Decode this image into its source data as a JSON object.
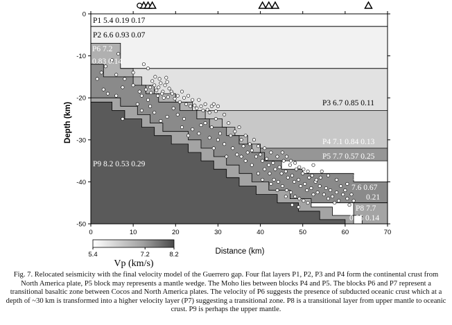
{
  "chart_data": {
    "type": "scatter",
    "xlabel": "Distance (km)",
    "ylabel": "Depth (km)",
    "xlim": [
      0,
      70
    ],
    "ylim": [
      0,
      -50
    ],
    "x_ticks": [
      "0",
      "10",
      "20",
      "30",
      "40",
      "50",
      "60",
      "70"
    ],
    "y_ticks": [
      "0",
      "-10",
      "-20",
      "-30",
      "-40",
      "-50"
    ],
    "stations": [
      {
        "x": 12.5,
        "type": "triangle"
      },
      {
        "x": 13.5,
        "type": "triangle"
      },
      {
        "x": 14.5,
        "type": "triangle"
      },
      {
        "x": 40.5,
        "type": "triangle"
      },
      {
        "x": 42.0,
        "type": "triangle"
      },
      {
        "x": 43.5,
        "type": "triangle"
      },
      {
        "x": 65.5,
        "type": "triangle"
      }
    ],
    "layers": [
      {
        "name": "P1",
        "label": "P1  5.4  0.19  0.17",
        "vp": 5.4,
        "color": "#ffffff",
        "poly": [
          [
            0,
            0
          ],
          [
            70,
            0
          ],
          [
            70,
            -3
          ],
          [
            0,
            -3
          ]
        ]
      },
      {
        "name": "P2",
        "label": "P2  6.6  0.93  0.07",
        "vp": 6.6,
        "color": "#f2f2f2",
        "poly": [
          [
            0,
            -3
          ],
          [
            70,
            -3
          ],
          [
            70,
            -13
          ],
          [
            0,
            -13
          ]
        ]
      },
      {
        "name": "P3",
        "label": "P3  6.7  0.85  0.11",
        "vp": 6.7,
        "color": "#e2e2e2",
        "poly": [
          [
            0,
            -13
          ],
          [
            70,
            -13
          ],
          [
            70,
            -23
          ],
          [
            0,
            -23
          ]
        ]
      },
      {
        "name": "P4",
        "label": "P4  7.1  0.84  0.13",
        "vp": 7.1,
        "color": "#c8c8c8",
        "poly": [
          [
            0,
            -23
          ],
          [
            70,
            -23
          ],
          [
            70,
            -32
          ],
          [
            0,
            -32
          ]
        ]
      },
      {
        "name": "P5",
        "label": "P5  7.7  0.57  0.25",
        "vp": 7.7,
        "color": "#969696",
        "poly": [
          [
            40,
            -32
          ],
          [
            70,
            -32
          ],
          [
            70,
            -35
          ],
          [
            40,
            -35
          ]
        ]
      },
      {
        "name": "P6",
        "label_lines": [
          "P6  7.2",
          "0.83  0.14"
        ],
        "vp": 7.2,
        "color": "#b0b0b0",
        "poly": [
          [
            0,
            -7
          ],
          [
            7,
            -7
          ],
          [
            7,
            -13
          ],
          [
            10,
            -13
          ],
          [
            10,
            -15
          ],
          [
            12,
            -15
          ],
          [
            12,
            -17
          ],
          [
            15,
            -17
          ],
          [
            15,
            -19
          ],
          [
            20,
            -19
          ],
          [
            20,
            -21
          ],
          [
            24,
            -21
          ],
          [
            24,
            -23
          ],
          [
            27,
            -23
          ],
          [
            27,
            -25
          ],
          [
            31,
            -25
          ],
          [
            31,
            -27
          ],
          [
            34,
            -27
          ],
          [
            34,
            -29
          ],
          [
            37,
            -29
          ],
          [
            37,
            -31
          ],
          [
            40,
            -31
          ],
          [
            40,
            -35
          ],
          [
            45,
            -35
          ],
          [
            45,
            -37
          ],
          [
            0,
            -37
          ]
        ]
      },
      {
        "name": "P7",
        "label_lines": [
          "P7",
          "7.6   0.67",
          "0.21"
        ],
        "vp": 7.6,
        "color": "#8a8a8a",
        "poly": [
          [
            0,
            -12
          ],
          [
            3,
            -12
          ],
          [
            3,
            -15
          ],
          [
            10,
            -15
          ],
          [
            10,
            -17
          ],
          [
            13,
            -17
          ],
          [
            13,
            -19
          ],
          [
            16,
            -19
          ],
          [
            16,
            -21
          ],
          [
            21,
            -21
          ],
          [
            21,
            -23
          ],
          [
            25,
            -23
          ],
          [
            25,
            -25
          ],
          [
            28,
            -25
          ],
          [
            28,
            -27
          ],
          [
            32,
            -27
          ],
          [
            32,
            -29
          ],
          [
            35,
            -29
          ],
          [
            35,
            -31
          ],
          [
            38,
            -31
          ],
          [
            38,
            -33
          ],
          [
            41,
            -33
          ],
          [
            41,
            -35
          ],
          [
            45,
            -35
          ],
          [
            45,
            -37
          ],
          [
            50,
            -37
          ],
          [
            50,
            -38
          ],
          [
            62,
            -38
          ],
          [
            62,
            -40
          ],
          [
            70,
            -40
          ],
          [
            70,
            -45
          ],
          [
            0,
            -45
          ]
        ]
      },
      {
        "name": "P8",
        "label_lines": [
          "P8   7.7",
          "0.85  0.14"
        ],
        "vp": 7.7,
        "color": "#a4a4a4",
        "poly": [
          [
            0,
            -20
          ],
          [
            7,
            -20
          ],
          [
            7,
            -22
          ],
          [
            11,
            -22
          ],
          [
            11,
            -24
          ],
          [
            14,
            -24
          ],
          [
            14,
            -26
          ],
          [
            17,
            -26
          ],
          [
            17,
            -28
          ],
          [
            23,
            -28
          ],
          [
            23,
            -30
          ],
          [
            26,
            -30
          ],
          [
            26,
            -32
          ],
          [
            29,
            -32
          ],
          [
            29,
            -34
          ],
          [
            32,
            -34
          ],
          [
            32,
            -36
          ],
          [
            35,
            -36
          ],
          [
            35,
            -38
          ],
          [
            38,
            -38
          ],
          [
            38,
            -40
          ],
          [
            42,
            -40
          ],
          [
            42,
            -42
          ],
          [
            47,
            -42
          ],
          [
            47,
            -44
          ],
          [
            52,
            -44
          ],
          [
            52,
            -46
          ],
          [
            57,
            -46
          ],
          [
            57,
            -48
          ],
          [
            64,
            -48
          ],
          [
            64,
            -50
          ],
          [
            70,
            -50
          ],
          [
            70,
            -45
          ],
          [
            62,
            -45
          ],
          [
            62,
            -50
          ],
          [
            0,
            -50
          ]
        ]
      },
      {
        "name": "P9",
        "label": "P9  8.2  0.53  0.29",
        "vp": 8.2,
        "color": "#5a5a5a",
        "poly": [
          [
            0,
            -21
          ],
          [
            5,
            -21
          ],
          [
            5,
            -23
          ],
          [
            8,
            -23
          ],
          [
            8,
            -25
          ],
          [
            12,
            -25
          ],
          [
            12,
            -27
          ],
          [
            15,
            -27
          ],
          [
            15,
            -29
          ],
          [
            19,
            -29
          ],
          [
            19,
            -31
          ],
          [
            23,
            -31
          ],
          [
            23,
            -33
          ],
          [
            26,
            -33
          ],
          [
            26,
            -35
          ],
          [
            29,
            -35
          ],
          [
            29,
            -37
          ],
          [
            32,
            -37
          ],
          [
            32,
            -39
          ],
          [
            35,
            -39
          ],
          [
            35,
            -41
          ],
          [
            39,
            -41
          ],
          [
            39,
            -43
          ],
          [
            44,
            -43
          ],
          [
            44,
            -45
          ],
          [
            49,
            -45
          ],
          [
            49,
            -47
          ],
          [
            54,
            -47
          ],
          [
            54,
            -49
          ],
          [
            60,
            -49
          ],
          [
            60,
            -50
          ],
          [
            0,
            -50
          ]
        ]
      }
    ],
    "colorbar": {
      "label": "Vp (km/s)",
      "ticks": [
        "5.4",
        "7.2",
        "8.2"
      ],
      "min": 5.4,
      "max": 8.2
    }
  },
  "caption": {
    "text": "Fig. 7. Relocated seismicity with the final velocity model of the Guerrero gap. Four flat layers  P1, P2, P3 and P4 form the continental crust from North America plate, P5 block may represents a mantle wedge. The Moho lies between blocks P4 and P5. The blocks P6 and P7 represent a transitional basaltic zone between Cocos and North America plates. The velocity of P6 suggests the presence of subducted oceanic crust which at a depth of ~30 km is transformed into a higher velocity layer (P7) suggesting a transitional zone. P8 is a transitional layer from upper mantle to oceanic crust. P9 is perhaps the upper mantle."
  },
  "events": [
    [
      6.5,
      -9.5
    ],
    [
      5.0,
      -11.0
    ],
    [
      2.5,
      -14.0
    ],
    [
      3.5,
      -12.5
    ],
    [
      1.5,
      -15.5
    ],
    [
      6.0,
      -14.5
    ],
    [
      8.0,
      -15.5
    ],
    [
      10.0,
      -14.0
    ],
    [
      12.5,
      -12.0
    ],
    [
      13.5,
      -13.0
    ],
    [
      4.0,
      -19.0
    ],
    [
      3.0,
      -18.0
    ],
    [
      6.0,
      -19.5
    ],
    [
      7.5,
      -17.5
    ],
    [
      10.0,
      -17.0
    ],
    [
      11.5,
      -18.5
    ],
    [
      12.0,
      -19.5
    ],
    [
      13.0,
      -18.0
    ],
    [
      14.0,
      -17.5
    ],
    [
      14.5,
      -16.0
    ],
    [
      15.0,
      -17.0
    ],
    [
      15.5,
      -18.2
    ],
    [
      16.0,
      -17.5
    ],
    [
      16.5,
      -16.5
    ],
    [
      17.0,
      -18.5
    ],
    [
      17.5,
      -17.0
    ],
    [
      18.0,
      -16.2
    ],
    [
      18.5,
      -17.8
    ],
    [
      19.0,
      -18.5
    ],
    [
      15.8,
      -19.5
    ],
    [
      16.8,
      -19.0
    ],
    [
      17.2,
      -20.0
    ],
    [
      18.2,
      -19.8
    ],
    [
      19.2,
      -19.0
    ],
    [
      19.8,
      -20.2
    ],
    [
      16.2,
      -15.5
    ],
    [
      17.8,
      -15.2
    ],
    [
      15.2,
      -15.0
    ],
    [
      14.2,
      -18.8
    ],
    [
      13.5,
      -20.5
    ],
    [
      20.5,
      -19.5
    ],
    [
      21.0,
      -21.0
    ],
    [
      21.5,
      -18.5
    ],
    [
      22.0,
      -20.0
    ],
    [
      22.5,
      -21.5
    ],
    [
      23.0,
      -19.5
    ],
    [
      23.5,
      -22.0
    ],
    [
      24.0,
      -20.5
    ],
    [
      24.5,
      -21.8
    ],
    [
      25.0,
      -22.5
    ],
    [
      25.5,
      -20.5
    ],
    [
      26.0,
      -22.0
    ],
    [
      26.5,
      -23.0
    ],
    [
      27.0,
      -21.5
    ],
    [
      27.5,
      -22.8
    ],
    [
      28.0,
      -23.5
    ],
    [
      28.5,
      -22.0
    ],
    [
      29.0,
      -21.5
    ],
    [
      29.5,
      -23.2
    ],
    [
      30.0,
      -22.0
    ],
    [
      14.0,
      -22.0
    ],
    [
      15.0,
      -23.5
    ],
    [
      16.5,
      -25.5
    ],
    [
      18.0,
      -24.5
    ],
    [
      19.5,
      -22.5
    ],
    [
      20.5,
      -24.0
    ],
    [
      22.0,
      -25.0
    ],
    [
      12.0,
      -23.0
    ],
    [
      7.5,
      -25.0
    ],
    [
      11.0,
      -21.5
    ],
    [
      21.5,
      -27.0
    ],
    [
      24.0,
      -27.5
    ],
    [
      26.0,
      -26.5
    ],
    [
      28.5,
      -27.0
    ],
    [
      30.5,
      -28.5
    ],
    [
      29.5,
      -25.0
    ],
    [
      27.0,
      -26.0
    ],
    [
      31.5,
      -24.0
    ],
    [
      32.5,
      -26.0
    ],
    [
      33.0,
      -29.0
    ],
    [
      34.0,
      -28.0
    ],
    [
      35.0,
      -27.0
    ],
    [
      35.5,
      -30.0
    ],
    [
      36.0,
      -31.5
    ],
    [
      36.5,
      -29.0
    ],
    [
      37.0,
      -33.0
    ],
    [
      37.5,
      -31.0
    ],
    [
      38.0,
      -32.5
    ],
    [
      38.5,
      -30.0
    ],
    [
      39.0,
      -34.0
    ],
    [
      39.5,
      -31.5
    ],
    [
      40.0,
      -33.5
    ],
    [
      40.5,
      -35.0
    ],
    [
      41.0,
      -32.0
    ],
    [
      41.5,
      -34.5
    ],
    [
      42.0,
      -36.0
    ],
    [
      42.5,
      -33.0
    ],
    [
      43.0,
      -35.5
    ],
    [
      43.5,
      -37.0
    ],
    [
      44.0,
      -34.0
    ],
    [
      44.5,
      -36.5
    ],
    [
      45.0,
      -38.0
    ],
    [
      45.5,
      -35.0
    ],
    [
      46.0,
      -37.5
    ],
    [
      46.5,
      -39.0
    ],
    [
      47.0,
      -36.0
    ],
    [
      47.5,
      -38.5
    ],
    [
      48.0,
      -40.0
    ],
    [
      48.5,
      -37.0
    ],
    [
      49.0,
      -39.5
    ],
    [
      49.5,
      -41.0
    ],
    [
      50.0,
      -38.0
    ],
    [
      50.5,
      -40.5
    ],
    [
      51.0,
      -42.0
    ],
    [
      51.5,
      -39.0
    ],
    [
      52.0,
      -41.5
    ],
    [
      52.5,
      -43.0
    ],
    [
      53.0,
      -40.0
    ],
    [
      53.5,
      -42.5
    ],
    [
      54.0,
      -41.0
    ],
    [
      45.2,
      -33.0
    ],
    [
      46.2,
      -34.0
    ],
    [
      47.2,
      -35.0
    ],
    [
      48.2,
      -35.5
    ],
    [
      49.2,
      -36.5
    ],
    [
      50.2,
      -37.0
    ],
    [
      51.2,
      -37.5
    ],
    [
      52.2,
      -38.5
    ],
    [
      53.2,
      -39.5
    ],
    [
      54.2,
      -39.0
    ],
    [
      42.2,
      -38.0
    ],
    [
      43.2,
      -39.5
    ],
    [
      44.2,
      -40.0
    ],
    [
      45.2,
      -41.0
    ],
    [
      46.2,
      -42.0
    ],
    [
      47.2,
      -42.5
    ],
    [
      48.2,
      -43.5
    ],
    [
      49.2,
      -44.0
    ],
    [
      50.2,
      -44.5
    ],
    [
      51.2,
      -45.0
    ],
    [
      55.0,
      -43.0
    ],
    [
      55.5,
      -41.5
    ],
    [
      56.0,
      -44.0
    ],
    [
      56.5,
      -42.0
    ],
    [
      57.0,
      -43.5
    ],
    [
      57.5,
      -45.0
    ],
    [
      58.0,
      -42.5
    ],
    [
      58.5,
      -44.5
    ],
    [
      59.0,
      -41.0
    ],
    [
      59.5,
      -43.0
    ],
    [
      60.0,
      -42.0
    ],
    [
      60.5,
      -44.0
    ],
    [
      61.0,
      -45.5
    ],
    [
      61.5,
      -43.0
    ],
    [
      62.0,
      -44.5
    ],
    [
      60.5,
      -40.5
    ],
    [
      58.0,
      -39.5
    ],
    [
      56.0,
      -38.5
    ],
    [
      54.5,
      -37.5
    ],
    [
      52.5,
      -36.0
    ],
    [
      38.0,
      -36.0
    ],
    [
      39.5,
      -38.0
    ],
    [
      40.5,
      -39.5
    ],
    [
      41.0,
      -37.0
    ],
    [
      42.5,
      -40.5
    ],
    [
      44.0,
      -42.0
    ],
    [
      46.0,
      -43.5
    ],
    [
      47.5,
      -45.5
    ],
    [
      49.0,
      -46.0
    ],
    [
      35.5,
      -34.0
    ],
    [
      33.5,
      -32.0
    ],
    [
      31.5,
      -31.0
    ],
    [
      34.5,
      -33.5
    ],
    [
      36.5,
      -35.0
    ],
    [
      30.0,
      -30.0
    ],
    [
      28.0,
      -29.5
    ],
    [
      25.5,
      -28.5
    ],
    [
      23.0,
      -29.0
    ],
    [
      29.0,
      -32.0
    ],
    [
      32.0,
      -34.0
    ]
  ]
}
